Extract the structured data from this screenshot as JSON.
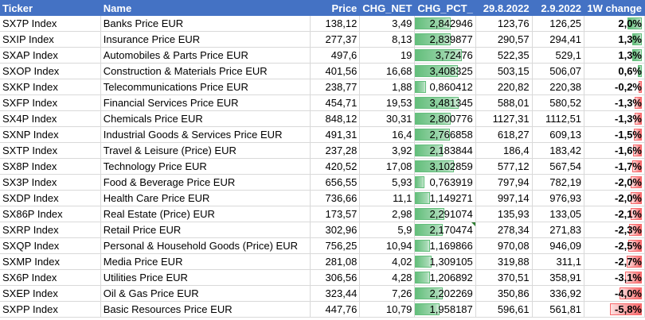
{
  "headers": {
    "ticker": "Ticker",
    "name": "Name",
    "price": "Price",
    "chg_net": "CHG_NET",
    "chg_pct": "CHG_PCT_",
    "d1": "29.8.2022",
    "d2": "2.9.2022",
    "week": "1W change"
  },
  "colors": {
    "header": "#4472c4",
    "pos_bar": "#63be7b",
    "neg_bar": "#f8696b"
  },
  "rows": [
    {
      "ticker": "SX7P Index",
      "name": "Banks Price EUR",
      "price": "138,12",
      "chg_net": "3,49",
      "chg_pct": "2,842946",
      "pct": 2.842946,
      "d1": "123,76",
      "d2": "126,25",
      "week": "2,0%",
      "wk": 2.0
    },
    {
      "ticker": "SXIP Index",
      "name": "Insurance Price EUR",
      "price": "277,37",
      "chg_net": "8,13",
      "chg_pct": "2,839877",
      "pct": 2.839877,
      "d1": "290,57",
      "d2": "294,41",
      "week": "1,3%",
      "wk": 1.3
    },
    {
      "ticker": "SXAP Index",
      "name": "Automobiles & Parts Price EUR",
      "price": "497,6",
      "chg_net": "19",
      "chg_pct": "3,72476",
      "pct": 3.72476,
      "d1": "522,35",
      "d2": "529,1",
      "week": "1,3%",
      "wk": 1.3
    },
    {
      "ticker": "SXOP Index",
      "name": "Construction & Materials Price EUR",
      "price": "401,56",
      "chg_net": "16,68",
      "chg_pct": "3,408325",
      "pct": 3.408325,
      "d1": "503,15",
      "d2": "506,07",
      "week": "0,6%",
      "wk": 0.6
    },
    {
      "ticker": "SXKP Index",
      "name": "Telecommunications Price EUR",
      "price": "238,77",
      "chg_net": "1,88",
      "chg_pct": "0,860412",
      "pct": 0.860412,
      "d1": "220,82",
      "d2": "220,38",
      "week": "-0,2%",
      "wk": -0.2
    },
    {
      "ticker": "SXFP Index",
      "name": "Financial Services Price EUR",
      "price": "454,71",
      "chg_net": "19,53",
      "chg_pct": "3,481345",
      "pct": 3.481345,
      "d1": "588,01",
      "d2": "580,52",
      "week": "-1,3%",
      "wk": -1.3
    },
    {
      "ticker": "SX4P Index",
      "name": "Chemicals Price EUR",
      "price": "848,12",
      "chg_net": "30,31",
      "chg_pct": "2,800776",
      "pct": 2.800776,
      "d1": "1127,31",
      "d2": "1112,51",
      "week": "-1,3%",
      "wk": -1.3
    },
    {
      "ticker": "SXNP Index",
      "name": "Industrial Goods & Services Price EUR",
      "price": "491,31",
      "chg_net": "16,4",
      "chg_pct": "2,766858",
      "pct": 2.766858,
      "d1": "618,27",
      "d2": "609,13",
      "week": "-1,5%",
      "wk": -1.5
    },
    {
      "ticker": "SXTP Index",
      "name": "Travel & Leisure (Price) EUR",
      "price": "237,28",
      "chg_net": "3,92",
      "chg_pct": "2,183844",
      "pct": 2.183844,
      "d1": "186,4",
      "d2": "183,42",
      "week": "-1,6%",
      "wk": -1.6
    },
    {
      "ticker": "SX8P Index",
      "name": "Technology Price EUR",
      "price": "420,52",
      "chg_net": "17,08",
      "chg_pct": "3,102859",
      "pct": 3.102859,
      "d1": "577,12",
      "d2": "567,54",
      "week": "-1,7%",
      "wk": -1.7
    },
    {
      "ticker": "SX3P Index",
      "name": "Food & Beverage Price EUR",
      "price": "656,55",
      "chg_net": "5,93",
      "chg_pct": "0,763919",
      "pct": 0.763919,
      "d1": "797,94",
      "d2": "782,19",
      "week": "-2,0%",
      "wk": -2.0
    },
    {
      "ticker": "SXDP Index",
      "name": "Health Care Price EUR",
      "price": "736,66",
      "chg_net": "11,1",
      "chg_pct": "1,149271",
      "pct": 1.149271,
      "d1": "997,14",
      "d2": "976,93",
      "week": "-2,0%",
      "wk": -2.0
    },
    {
      "ticker": "SX86P Index",
      "name": "Real Estate (Price) EUR",
      "price": "173,57",
      "chg_net": "2,98",
      "chg_pct": "2,291074",
      "pct": 2.291074,
      "d1": "135,93",
      "d2": "133,05",
      "week": "-2,1%",
      "wk": -2.1
    },
    {
      "ticker": "SXRP Index",
      "name": "Retail Price EUR",
      "price": "302,96",
      "chg_net": "5,9",
      "chg_pct": "2,170474",
      "pct": 2.170474,
      "d1": "278,34",
      "d2": "271,83",
      "week": "-2,3%",
      "wk": -2.3
    },
    {
      "ticker": "SXQP Index",
      "name": "Personal & Household Goods (Price) EUR",
      "price": "756,25",
      "chg_net": "10,94",
      "chg_pct": "1,169866",
      "pct": 1.169866,
      "d1": "970,08",
      "d2": "946,09",
      "week": "-2,5%",
      "wk": -2.5
    },
    {
      "ticker": "SXMP Index",
      "name": "Media Price EUR",
      "price": "281,08",
      "chg_net": "4,02",
      "chg_pct": "1,309105",
      "pct": 1.309105,
      "d1": "319,88",
      "d2": "311,1",
      "week": "-2,7%",
      "wk": -2.7
    },
    {
      "ticker": "SX6P Index",
      "name": "Utilities Price EUR",
      "price": "306,56",
      "chg_net": "4,28",
      "chg_pct": "1,206892",
      "pct": 1.206892,
      "d1": "370,51",
      "d2": "358,91",
      "week": "-3,1%",
      "wk": -3.1
    },
    {
      "ticker": "SXEP Index",
      "name": "Oil & Gas Price EUR",
      "price": "323,44",
      "chg_net": "7,26",
      "chg_pct": "2,202269",
      "pct": 2.202269,
      "d1": "350,86",
      "d2": "336,92",
      "week": "-4,0%",
      "wk": -4.0
    },
    {
      "ticker": "SXPP Index",
      "name": "Basic Resources Price EUR",
      "price": "447,76",
      "chg_net": "10,79",
      "chg_pct": "1,958187",
      "pct": 1.958187,
      "d1": "596,61",
      "d2": "561,81",
      "week": "-5,8%",
      "wk": -5.8
    }
  ]
}
